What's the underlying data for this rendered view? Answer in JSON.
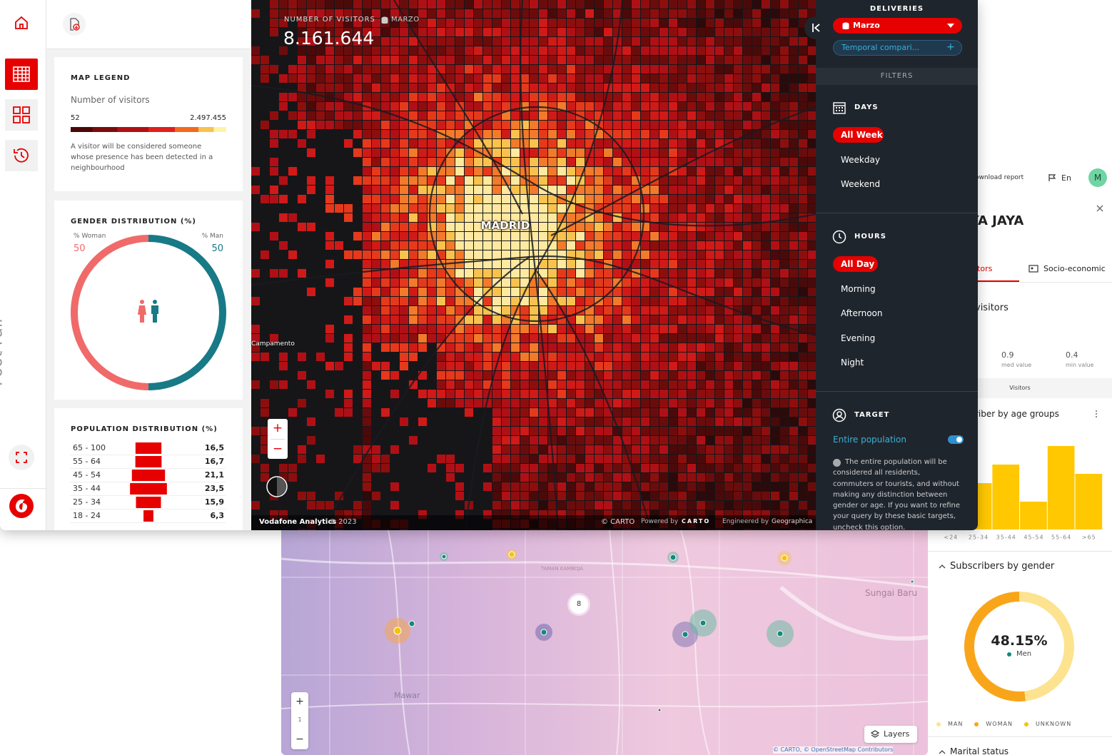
{
  "sidebar": {
    "vertical_title": "Foot Fall"
  },
  "legend": {
    "title": "MAP LEGEND",
    "subtitle": "Number of visitors",
    "min": "52",
    "max": "2.497.455",
    "note": "A visitor will be considered someone whose presence has been detected in a neighbourhood"
  },
  "gender": {
    "title": "GENDER DISTRIBUTION (%)",
    "woman": {
      "label": "% Woman",
      "value": 50,
      "color": "#f06a6a"
    },
    "man": {
      "label": "% Man",
      "value": 50,
      "color": "#177a86"
    }
  },
  "population": {
    "title": "POPULATION DISTRIBUTION (%)",
    "categories": [
      "65 - 100",
      "55 - 64",
      "45 - 54",
      "35 - 44",
      "25 - 34",
      "18 - 24"
    ],
    "values": [
      16.5,
      16.7,
      21.1,
      23.5,
      15.9,
      6.3
    ],
    "value_labels": [
      "16,5",
      "16,7",
      "21,1",
      "23,5",
      "15,9",
      "6,3"
    ],
    "color": "#e60000"
  },
  "map": {
    "metric_label": "NUMBER OF VISITORS",
    "period": "MARZO",
    "total": "8.161.644",
    "city": "MADRID",
    "place": "Campamento",
    "zoom_in": "+",
    "zoom_out": "−",
    "footer": {
      "brand": "Vodafone Analytics",
      "year": "© 2023",
      "carto": "© CARTO",
      "powered": "Powered by",
      "carto_logo": "CARTO",
      "engineered": "Engineered by",
      "engineer": "Geographica"
    }
  },
  "filters": {
    "deliveries_title": "DELIVERIES",
    "dataset": "Marzo",
    "comparison": "Temporal compari...",
    "plus": "+",
    "filters_title": "FILTERS",
    "days": {
      "title": "DAYS",
      "options": [
        "All Week",
        "Weekday",
        "Weekend"
      ]
    },
    "hours": {
      "title": "HOURS",
      "options": [
        "All Day",
        "Morning",
        "Afternoon",
        "Evening",
        "Night"
      ]
    },
    "target": {
      "title": "TARGET",
      "option": "Entire population",
      "note": "The entire population will be considered all residents, commuters or tourists, and without making any distinction between gender or age. If you want to refine your query by these basic targets, uncheck this option."
    }
  },
  "report": {
    "download": "ownload report",
    "language": "En",
    "avatar": "M",
    "title": "LYA JAYA",
    "tabs": [
      "itors",
      "Socio-economic"
    ],
    "section": "visitors",
    "stats": [
      {
        "value": "0.9",
        "label": "med value"
      },
      {
        "value": "0.4",
        "label": "min value"
      }
    ],
    "stats_caption": "Visitors",
    "age_chart": {
      "type": "bar",
      "title": "riber by age groups",
      "categories": [
        "<24",
        "25-34",
        "35-44",
        "45-54",
        "55-64",
        ">65"
      ],
      "values": [
        null,
        65,
        91,
        39,
        117,
        78
      ],
      "color": "#ffc800",
      "ylim": [
        0,
        120
      ]
    },
    "gender_chart": {
      "type": "donut",
      "title": "Subscribers by gender",
      "center_label": "48.15%",
      "center_sub": "Men",
      "series": [
        {
          "name": "MAN",
          "value": 48.15,
          "color": "#fde38f"
        },
        {
          "name": "WOMAN",
          "value": 51.85,
          "color": "#f9a51a"
        },
        {
          "name": "UNKNOWN",
          "value": 0,
          "color": "#f5c400"
        }
      ]
    },
    "next_section": "Marital status"
  },
  "bottom_map": {
    "cluster": "8",
    "labels": [
      "Sungai Baru",
      "Mawar",
      "TAMAN KAMBOJA"
    ],
    "zoom_in": "+",
    "zoom_level": "1",
    "zoom_out": "−",
    "layers": "Layers",
    "attribution": "© CARTO, © OpenStreetMap Contributors"
  }
}
